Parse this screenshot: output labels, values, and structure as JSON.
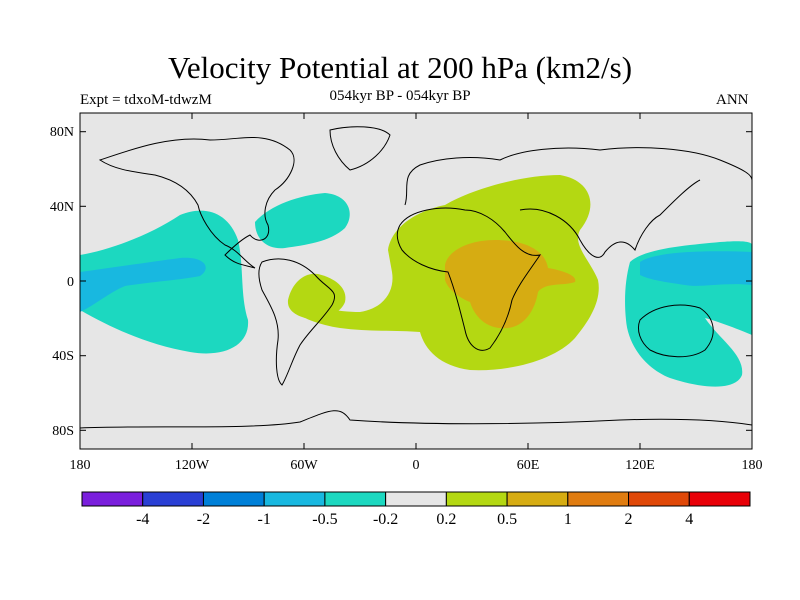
{
  "header": {
    "title": "Velocity Potential at 200 hPa (km2/s)",
    "subtitle": "054kyr BP - 054kyr BP",
    "expt_label": "Expt = tdxoM-tdwzM",
    "season": "ANN"
  },
  "map": {
    "lat_ticks": [
      "80N",
      "40N",
      "0",
      "40S",
      "80S"
    ],
    "lon_ticks": [
      "180",
      "120W",
      "60W",
      "0",
      "60E",
      "120E",
      "180"
    ]
  },
  "colorbar": {
    "colors": [
      "#7a1fdc",
      "#2a3fd4",
      "#0080d8",
      "#18b8e0",
      "#1cd8c0",
      "#e6e6e6",
      "#b4d812",
      "#d6ac12",
      "#e07c10",
      "#e04808",
      "#e80008"
    ],
    "labels": [
      "-4",
      "-2",
      "-1",
      "-0.5",
      "-0.2",
      "0.2",
      "0.5",
      "1",
      "2",
      "4"
    ]
  }
}
